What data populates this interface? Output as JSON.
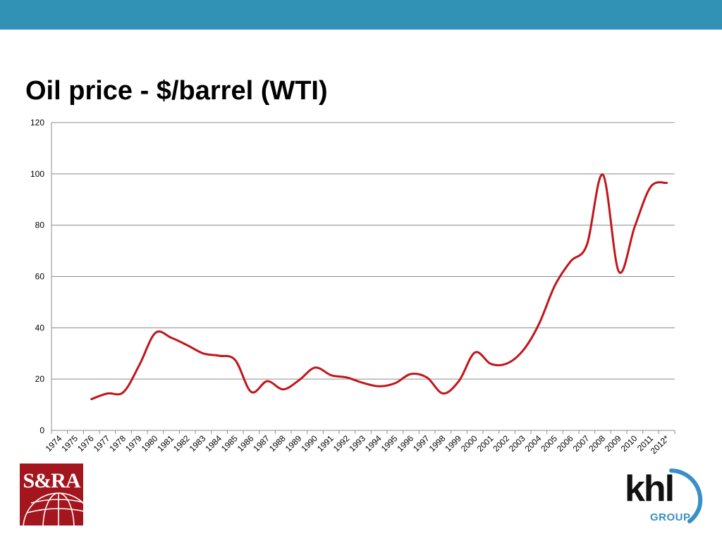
{
  "colors": {
    "top_bar": "#3192b6",
    "line": "#c0161b",
    "grid": "#8c8c8c",
    "logo_left_bg": "#a3161e",
    "logo_right_arc": "#3a8fc6"
  },
  "slide": {
    "title": "Oil price - $/barrel (WTI)"
  },
  "logos": {
    "left": {
      "text": "S&RA",
      "icon": "globe-icon"
    },
    "right": {
      "text": "khl",
      "subtext": "GROUP",
      "icon": "arc-icon"
    }
  },
  "chart_data": {
    "type": "line",
    "title": "Oil price - $/barrel (WTI)",
    "xlabel": "",
    "ylabel": "",
    "ylim": [
      0,
      120
    ],
    "yticks": [
      0,
      20,
      40,
      60,
      80,
      100,
      120
    ],
    "grid": true,
    "legend": "none",
    "categories": [
      "1974",
      "1975",
      "1976",
      "1977",
      "1978",
      "1979",
      "1980",
      "1981",
      "1982",
      "1983",
      "1984",
      "1985",
      "1986",
      "1987",
      "1988",
      "1989",
      "1990",
      "1991",
      "1992",
      "1993",
      "1994",
      "1995",
      "1996",
      "1997",
      "1998",
      "1999",
      "2000",
      "2001",
      "2002",
      "2003",
      "2004",
      "2005",
      "2006",
      "2007",
      "2008",
      "2009",
      "2010",
      "2011",
      "2012*"
    ],
    "series": [
      {
        "values": [
          null,
          null,
          12.2,
          14.4,
          14.9,
          25.5,
          38.0,
          36.1,
          33.2,
          30.0,
          29.1,
          27.4,
          15.0,
          19.2,
          16.0,
          19.6,
          24.5,
          21.5,
          20.6,
          18.5,
          17.2,
          18.4,
          22.0,
          20.6,
          14.4,
          19.3,
          30.4,
          25.9,
          26.1,
          31.1,
          41.4,
          56.5,
          66.0,
          72.3,
          99.7,
          61.9,
          79.5,
          95.0,
          96.5
        ]
      }
    ]
  }
}
